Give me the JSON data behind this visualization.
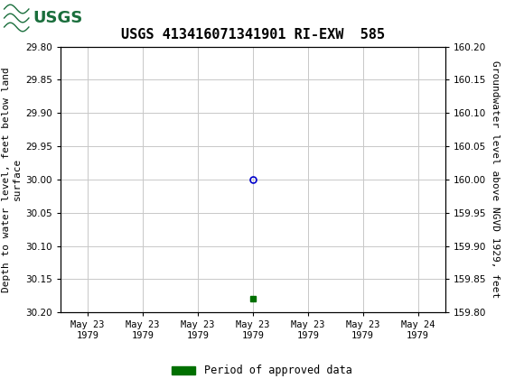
{
  "title": "USGS 413416071341901 RI-EXW  585",
  "ylabel_left": "Depth to water level, feet below land\nsurface",
  "ylabel_right": "Groundwater level above NGVD 1929, feet",
  "ylim_left": [
    30.2,
    29.8
  ],
  "ylim_right": [
    159.8,
    160.2
  ],
  "yticks_left": [
    29.8,
    29.85,
    29.9,
    29.95,
    30.0,
    30.05,
    30.1,
    30.15,
    30.2
  ],
  "yticks_right": [
    160.2,
    160.15,
    160.1,
    160.05,
    160.0,
    159.95,
    159.9,
    159.85,
    159.8
  ],
  "xlim": [
    -0.5,
    6.5
  ],
  "xtick_labels": [
    "May 23\n1979",
    "May 23\n1979",
    "May 23\n1979",
    "May 23\n1979",
    "May 23\n1979",
    "May 23\n1979",
    "May 24\n1979"
  ],
  "xtick_positions": [
    0,
    1,
    2,
    3,
    4,
    5,
    6
  ],
  "data_point_x": 3,
  "data_point_y": 30.0,
  "marker_color": "#0000cc",
  "green_marker_x": 3,
  "green_marker_y": 30.18,
  "green_color": "#007000",
  "header_color": "#1a6e3c",
  "header_text_color": "#ffffff",
  "legend_label": "Period of approved data",
  "grid_color": "#c8c8c8",
  "background_color": "#ffffff",
  "plot_bg_color": "#ffffff",
  "font_color": "#000000",
  "title_fontsize": 11,
  "axis_label_fontsize": 8,
  "tick_fontsize": 7.5,
  "legend_fontsize": 8.5
}
